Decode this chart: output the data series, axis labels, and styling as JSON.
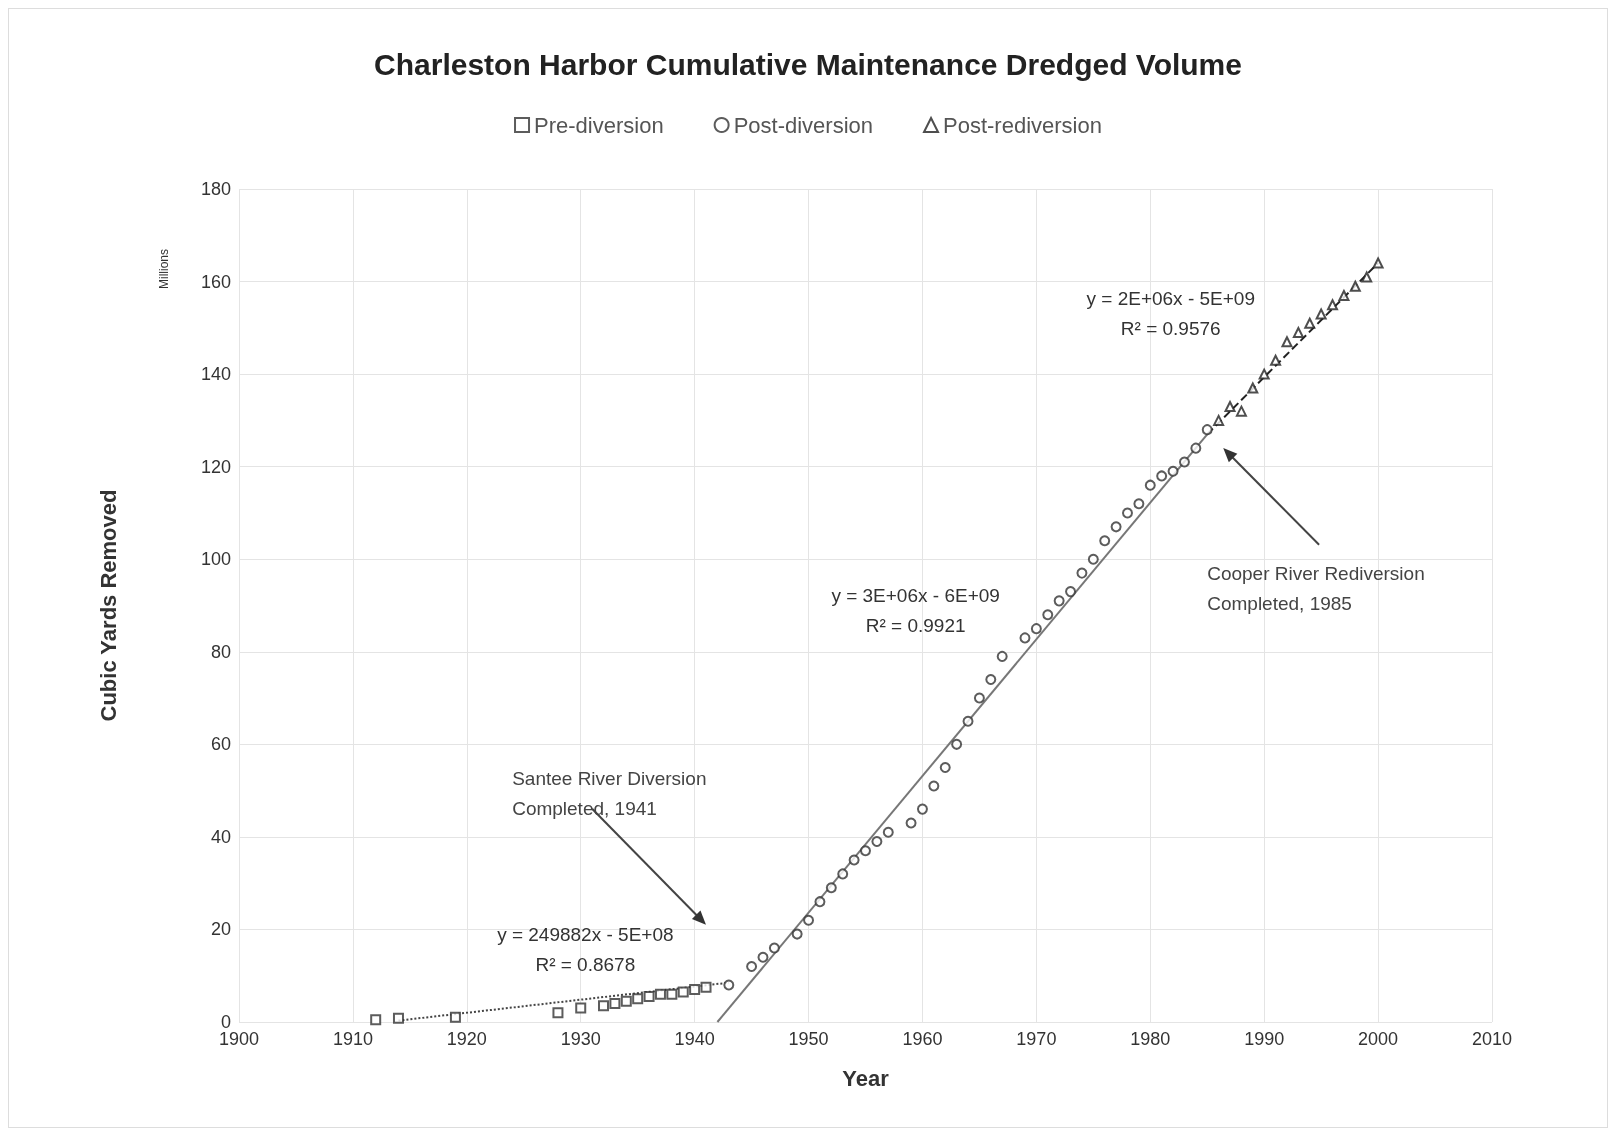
{
  "chart_data": {
    "type": "scatter",
    "title": "Charleston Harbor Cumulative Maintenance Dredged Volume",
    "xlabel": "Year",
    "ylabel": "Cubic Yards Removed",
    "xlim": [
      1900,
      2010
    ],
    "xticks": [
      1900,
      1910,
      1920,
      1930,
      1940,
      1950,
      1960,
      1970,
      1980,
      1990,
      2000,
      2010
    ],
    "ylim": [
      0,
      180
    ],
    "yticks": [
      0,
      20,
      40,
      60,
      80,
      100,
      120,
      140,
      160,
      180
    ],
    "grid": true,
    "legend": "top",
    "series": [
      {
        "name": "Pre-diversion",
        "marker": "square",
        "color": "#333333",
        "x": [
          1912,
          1914,
          1919,
          1928,
          1930,
          1932,
          1933,
          1934,
          1935,
          1936,
          1937,
          1938,
          1939,
          1940,
          1941
        ],
        "values": [
          0.5,
          0.8,
          1,
          2,
          3,
          3.5,
          4,
          4.5,
          5,
          5.5,
          6,
          6,
          6.5,
          7,
          7.5
        ]
      },
      {
        "name": "Post-diversion",
        "marker": "circle",
        "color": "#333333",
        "x": [
          1943,
          1945,
          1946,
          1947,
          1949,
          1950,
          1951,
          1952,
          1953,
          1954,
          1955,
          1956,
          1957,
          1959,
          1960,
          1961,
          1962,
          1963,
          1964,
          1965,
          1966,
          1967,
          1969,
          1970,
          1971,
          1972,
          1973,
          1974,
          1975,
          1976,
          1977,
          1978,
          1979,
          1980,
          1981,
          1982,
          1983,
          1984,
          1985
        ],
        "values": [
          8,
          12,
          14,
          16,
          19,
          22,
          26,
          29,
          32,
          35,
          37,
          39,
          41,
          43,
          46,
          51,
          55,
          60,
          65,
          70,
          74,
          79,
          83,
          85,
          88,
          91,
          93,
          97,
          100,
          104,
          107,
          110,
          112,
          116,
          118,
          119,
          121,
          124,
          128
        ]
      },
      {
        "name": "Post-rediversion",
        "marker": "triangle",
        "color": "#222222",
        "x": [
          1986,
          1987,
          1988,
          1989,
          1990,
          1991,
          1992,
          1993,
          1994,
          1995,
          1996,
          1997,
          1998,
          1999,
          2000
        ],
        "values": [
          130,
          133,
          132,
          137,
          140,
          143,
          147,
          149,
          151,
          153,
          155,
          157,
          159,
          161,
          164
        ]
      },
      {
        "type": "line",
        "line_style": "dotted",
        "color": "#444444",
        "x": [
          1914,
          1943
        ],
        "values": [
          0.3,
          8.5
        ]
      },
      {
        "type": "line",
        "line_style": "solid",
        "color": "#777777",
        "x": [
          1942,
          1985
        ],
        "values": [
          0,
          127
        ]
      },
      {
        "type": "line",
        "line_style": "dashed",
        "color": "#222222",
        "x": [
          1985,
          2000
        ],
        "values": [
          127,
          164
        ]
      }
    ],
    "annotations": [
      "Millions",
      "y = 249882x - 5E+08\nR² = 0.8678",
      "y = 3E+06x - 6E+09\nR² = 0.9921",
      "y = 2E+06x - 5E+09\nR² = 0.9576",
      "Santee River Diversion\nCompleted, 1941",
      "Cooper River Rediversion\nCompleted, 1985"
    ]
  }
}
